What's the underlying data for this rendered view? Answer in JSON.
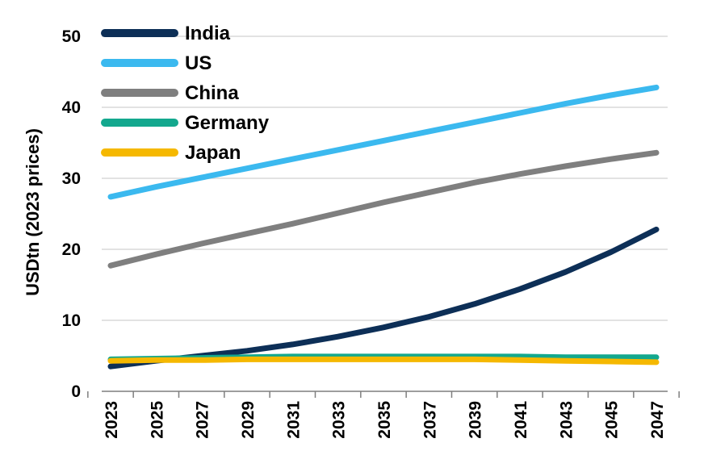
{
  "chart_data": {
    "type": "line",
    "title": "",
    "xlabel": "",
    "ylabel": "USDtn (2023 prices)",
    "ylim": [
      0,
      50
    ],
    "yticks": [
      0,
      10,
      20,
      30,
      40,
      50
    ],
    "x": [
      2023,
      2025,
      2027,
      2029,
      2031,
      2033,
      2035,
      2037,
      2039,
      2041,
      2043,
      2045,
      2047
    ],
    "grid": true,
    "legend_position": "top-left",
    "series": [
      {
        "name": "India",
        "color": "#0d2f57",
        "values": [
          3.5,
          4.3,
          5.0,
          5.7,
          6.6,
          7.7,
          9.0,
          10.5,
          12.3,
          14.4,
          16.8,
          19.6,
          22.8
        ]
      },
      {
        "name": "US",
        "color": "#3bb9ef",
        "values": [
          27.4,
          28.8,
          30.1,
          31.4,
          32.7,
          34.0,
          35.3,
          36.6,
          37.9,
          39.2,
          40.5,
          41.7,
          42.8
        ]
      },
      {
        "name": "China",
        "color": "#7f7f7f",
        "values": [
          17.7,
          19.3,
          20.8,
          22.2,
          23.6,
          25.1,
          26.6,
          28.0,
          29.4,
          30.6,
          31.7,
          32.7,
          33.6
        ]
      },
      {
        "name": "Germany",
        "color": "#13a88e",
        "values": [
          4.5,
          4.6,
          4.7,
          4.8,
          4.9,
          4.9,
          4.9,
          4.9,
          4.9,
          4.9,
          4.8,
          4.8,
          4.8
        ]
      },
      {
        "name": "Japan",
        "color": "#f5b800",
        "values": [
          4.3,
          4.4,
          4.4,
          4.5,
          4.5,
          4.5,
          4.5,
          4.5,
          4.5,
          4.4,
          4.3,
          4.2,
          4.1
        ]
      }
    ]
  }
}
